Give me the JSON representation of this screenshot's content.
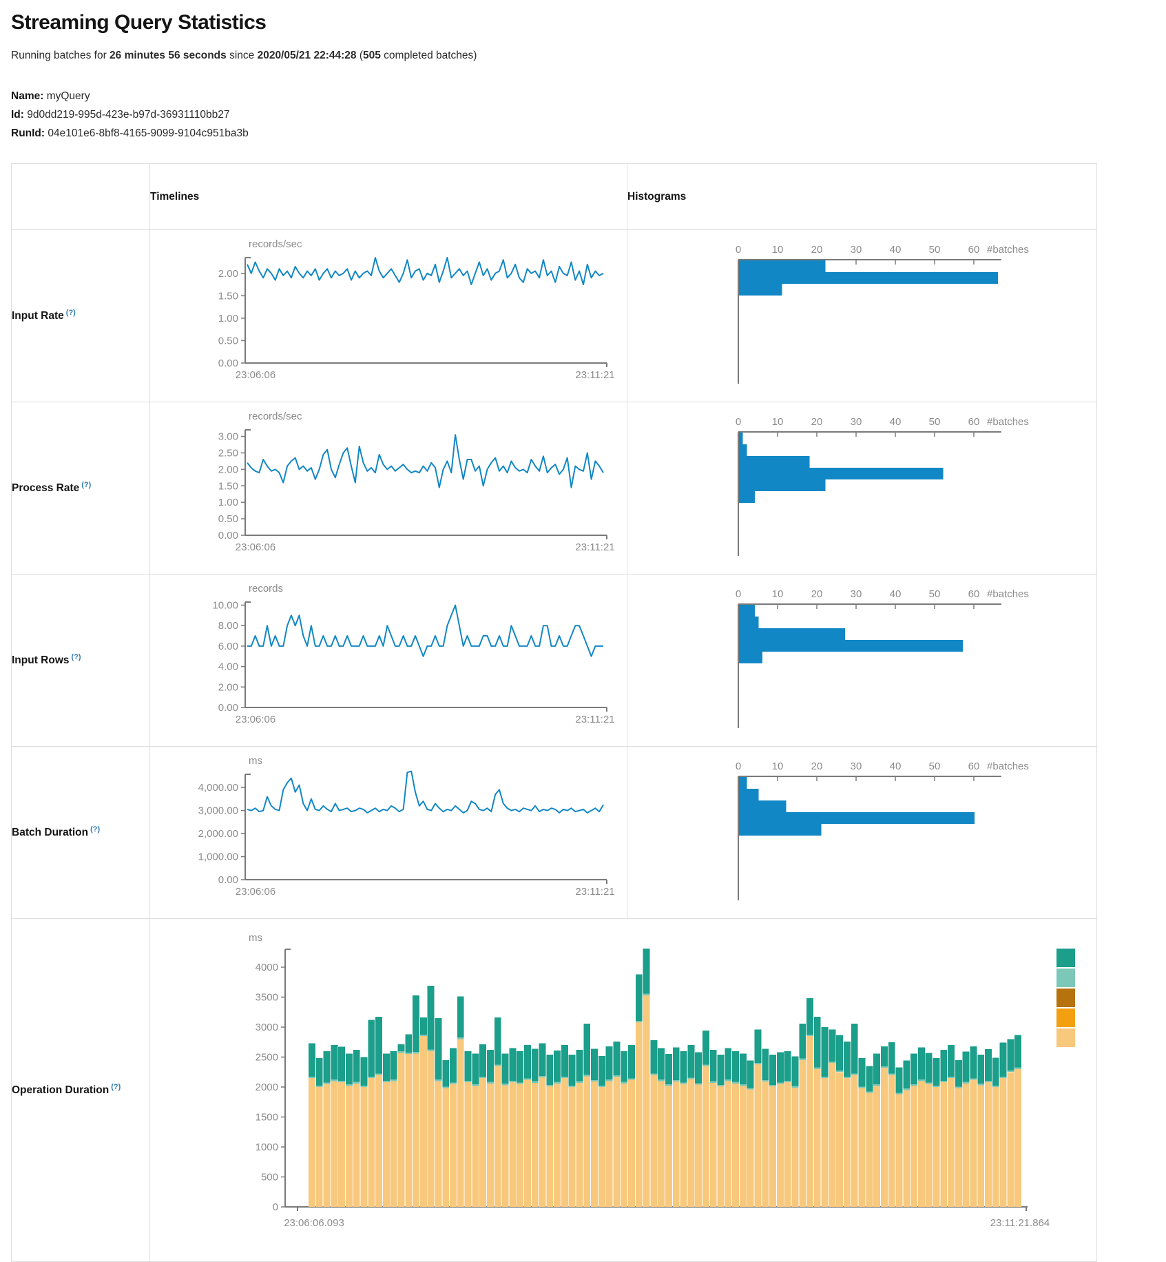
{
  "header": {
    "title": "Streaming Query Statistics",
    "prefix": "Running batches for",
    "duration": "26 minutes 56 seconds",
    "since": "since",
    "start_time": "2020/05/21 22:44:28",
    "open": "(",
    "count": "505",
    "suffix": " completed batches)"
  },
  "query_info": {
    "name_label": "Name:",
    "name": "myQuery",
    "id_label": "Id:",
    "id": "9d0dd219-995d-423e-b97d-36931110bb27",
    "runid_label": "RunId:",
    "runid": "04e101e6-8bf8-4165-9099-9104c951ba3b"
  },
  "table": {
    "timelines": "Timelines",
    "histograms": "Histograms",
    "rows": [
      {
        "label": "Input Rate",
        "help": "(?)"
      },
      {
        "label": "Process Rate",
        "help": "(?)"
      },
      {
        "label": "Input Rows",
        "help": "(?)"
      },
      {
        "label": "Batch Duration",
        "help": "(?)"
      },
      {
        "label": "Operation Duration",
        "help": "(?)"
      }
    ]
  },
  "colors": {
    "line": "#1287c5",
    "bar": "#1287c5",
    "axis": "#7a7a7a",
    "tick_text": "#8b8b8b",
    "teal": "#1b9e8a",
    "light_teal": "#7cc8b8",
    "brown": "#b5720d",
    "orange": "#f2a00f",
    "light_orange": "#f8c87d"
  },
  "chart_data": [
    {
      "type": "line",
      "row": "Input Rate",
      "unit": "records/sec",
      "x_start": "23:06:06",
      "x_end": "23:11:21",
      "ymax": 2.35,
      "yticks": [
        {
          "v": 0,
          "t": "0.00"
        },
        {
          "v": 0.5,
          "t": "0.50"
        },
        {
          "v": 1,
          "t": "1.00"
        },
        {
          "v": 1.5,
          "t": "1.50"
        },
        {
          "v": 2,
          "t": "2.00"
        }
      ],
      "values": [
        2.2,
        2.0,
        2.25,
        2.05,
        1.9,
        2.1,
        2.0,
        1.85,
        2.1,
        1.95,
        2.05,
        1.9,
        2.15,
        2.0,
        1.9,
        2.05,
        1.95,
        2.1,
        1.85,
        2.0,
        2.1,
        1.9,
        2.05,
        1.95,
        2.0,
        2.1,
        1.85,
        2.05,
        1.9,
        2.0,
        2.05,
        1.95,
        2.35,
        2.05,
        1.9,
        2.0,
        2.1,
        1.95,
        1.8,
        2.0,
        2.3,
        1.9,
        2.05,
        2.1,
        1.85,
        2.0,
        1.95,
        2.2,
        1.8,
        2.05,
        2.35,
        1.9,
        2.0,
        2.1,
        1.95,
        2.05,
        1.75,
        2.0,
        2.25,
        1.95,
        2.1,
        1.85,
        2.0,
        2.05,
        2.3,
        1.9,
        2.0,
        2.2,
        1.9,
        1.8,
        2.1,
        2.0,
        2.05,
        1.9,
        2.3,
        1.95,
        2.05,
        1.8,
        2.15,
        2.0,
        1.95,
        2.25,
        1.85,
        2.05,
        1.75,
        2.2,
        1.9,
        2.05,
        1.95,
        2.0
      ],
      "histogram": {
        "unit": "#batches",
        "xticks": [
          0,
          10,
          20,
          30,
          40,
          50,
          60
        ],
        "bars": [
          22,
          66,
          11
        ]
      }
    },
    {
      "type": "line",
      "row": "Process Rate",
      "unit": "records/sec",
      "x_start": "23:06:06",
      "x_end": "23:11:21",
      "ymax": 3.2,
      "yticks": [
        {
          "v": 0,
          "t": "0.00"
        },
        {
          "v": 0.5,
          "t": "0.50"
        },
        {
          "v": 1,
          "t": "1.00"
        },
        {
          "v": 1.5,
          "t": "1.50"
        },
        {
          "v": 2,
          "t": "2.00"
        },
        {
          "v": 2.5,
          "t": "2.50"
        },
        {
          "v": 3,
          "t": "3.00"
        }
      ],
      "values": [
        2.2,
        2.05,
        1.95,
        1.9,
        2.3,
        2.1,
        1.95,
        2.0,
        1.9,
        1.6,
        2.1,
        2.25,
        2.35,
        2.0,
        2.1,
        1.95,
        2.05,
        1.7,
        2.0,
        2.45,
        2.6,
        2.0,
        1.75,
        2.15,
        2.5,
        2.65,
        2.1,
        1.6,
        2.7,
        2.2,
        1.95,
        2.05,
        1.9,
        2.45,
        2.15,
        2.0,
        2.1,
        1.95,
        2.05,
        2.15,
        2.0,
        1.9,
        1.95,
        1.9,
        2.1,
        1.95,
        2.2,
        2.05,
        1.45,
        2.0,
        2.25,
        1.9,
        3.05,
        2.3,
        1.7,
        2.3,
        2.3,
        1.95,
        2.1,
        1.5,
        2.0,
        2.2,
        2.35,
        1.95,
        2.1,
        1.9,
        2.25,
        2.05,
        1.95,
        2.0,
        1.9,
        2.3,
        2.1,
        1.95,
        2.4,
        1.9,
        2.05,
        2.15,
        1.85,
        2.0,
        2.35,
        1.45,
        2.1,
        2.0,
        1.95,
        2.5,
        1.7,
        2.25,
        2.1,
        1.9
      ],
      "histogram": {
        "unit": "#batches",
        "xticks": [
          0,
          10,
          20,
          30,
          40,
          50,
          60
        ],
        "bars": [
          1,
          2,
          18,
          52,
          22,
          4
        ]
      }
    },
    {
      "type": "line",
      "row": "Input Rows",
      "unit": "records",
      "x_start": "23:06:06",
      "x_end": "23:11:21",
      "ymax": 10.3,
      "yticks": [
        {
          "v": 0,
          "t": "0.00"
        },
        {
          "v": 2,
          "t": "2.00"
        },
        {
          "v": 4,
          "t": "4.00"
        },
        {
          "v": 6,
          "t": "6.00"
        },
        {
          "v": 8,
          "t": "8.00"
        },
        {
          "v": 10,
          "t": "10.00"
        }
      ],
      "values": [
        6,
        6,
        7,
        6,
        6,
        8,
        6,
        7,
        6,
        6,
        8,
        9,
        8,
        9,
        7,
        6,
        8,
        6,
        6,
        7,
        6,
        6,
        7,
        6,
        6,
        7,
        6,
        6,
        6,
        7,
        6,
        6,
        6,
        7,
        6,
        8,
        7,
        6,
        6,
        7,
        6,
        6,
        7,
        6,
        5,
        6,
        6,
        7,
        6,
        6,
        8,
        9,
        10,
        8,
        6,
        7,
        6,
        6,
        6,
        7,
        7,
        6,
        6,
        7,
        6,
        6,
        8,
        7,
        6,
        6,
        6,
        7,
        6,
        6,
        8,
        8,
        6,
        6,
        7,
        6,
        6,
        7,
        8,
        8,
        7,
        6,
        5,
        6,
        6,
        6
      ],
      "histogram": {
        "unit": "#batches",
        "xticks": [
          0,
          10,
          20,
          30,
          40,
          50,
          60
        ],
        "bars": [
          4,
          5,
          27,
          57,
          6
        ]
      }
    },
    {
      "type": "line",
      "row": "Batch Duration",
      "unit": "ms",
      "x_start": "23:06:06",
      "x_end": "23:11:21",
      "ymax": 4570,
      "yticks": [
        {
          "v": 0,
          "t": "0.00"
        },
        {
          "v": 1000,
          "t": "1,000.00"
        },
        {
          "v": 2000,
          "t": "2,000.00"
        },
        {
          "v": 3000,
          "t": "3,000.00"
        },
        {
          "v": 4000,
          "t": "4,000.00"
        }
      ],
      "values": [
        3050,
        3000,
        3100,
        2950,
        3000,
        3600,
        3200,
        3050,
        3000,
        3900,
        4200,
        4400,
        3800,
        4100,
        3300,
        3000,
        3500,
        3050,
        3000,
        3200,
        3050,
        2950,
        3300,
        3000,
        3050,
        3100,
        2950,
        3000,
        3100,
        3050,
        2900,
        3000,
        3100,
        2950,
        3050,
        3000,
        3200,
        3100,
        2950,
        3050,
        4650,
        4700,
        3800,
        3200,
        3400,
        3050,
        3000,
        3300,
        3100,
        2950,
        3050,
        3000,
        3200,
        3050,
        2900,
        3000,
        3400,
        3300,
        3050,
        3000,
        3100,
        2950,
        3700,
        3900,
        3300,
        3100,
        3000,
        3050,
        2950,
        3100,
        3050,
        3000,
        3200,
        2950,
        3050,
        3000,
        3100,
        3050,
        2900,
        3050,
        3000,
        3100,
        2950,
        3000,
        3050,
        2900,
        3000,
        3100,
        2950,
        3250
      ],
      "histogram": {
        "unit": "#batches",
        "xticks": [
          0,
          10,
          20,
          30,
          40,
          50,
          60
        ],
        "bars": [
          2,
          5,
          12,
          60,
          21
        ]
      }
    },
    {
      "type": "stacked",
      "row": "Operation Duration",
      "unit": "ms",
      "x_start": "23:06:06.093",
      "x_end": "23:11:21.864",
      "yticks": [
        {
          "v": 0,
          "t": "0"
        },
        {
          "v": 500,
          "t": "500"
        },
        {
          "v": 1000,
          "t": "1000"
        },
        {
          "v": 1500,
          "t": "1500"
        },
        {
          "v": 2000,
          "t": "2000"
        },
        {
          "v": 2500,
          "t": "2500"
        },
        {
          "v": 3000,
          "t": "3000"
        },
        {
          "v": 3500,
          "t": "3500"
        },
        {
          "v": 4000,
          "t": "4000"
        }
      ],
      "sliver": 25,
      "legend_colors": [
        "teal",
        "light_teal",
        "brown",
        "orange",
        "light_orange"
      ],
      "bars": [
        [
          2150,
          2730
        ],
        [
          2000,
          2480
        ],
        [
          2050,
          2600
        ],
        [
          2100,
          2700
        ],
        [
          2080,
          2670
        ],
        [
          2020,
          2560
        ],
        [
          2060,
          2620
        ],
        [
          2000,
          2500
        ],
        [
          2150,
          3120
        ],
        [
          2200,
          3170
        ],
        [
          2080,
          2560
        ],
        [
          2100,
          2600
        ],
        [
          2570,
          2710
        ],
        [
          2550,
          2880
        ],
        [
          2560,
          3530
        ],
        [
          2850,
          3160
        ],
        [
          2600,
          3690
        ],
        [
          2100,
          3150
        ],
        [
          1980,
          2450
        ],
        [
          2050,
          2650
        ],
        [
          2800,
          3510
        ],
        [
          2080,
          2600
        ],
        [
          2020,
          2560
        ],
        [
          2150,
          2710
        ],
        [
          2060,
          2620
        ],
        [
          2350,
          3160
        ],
        [
          2030,
          2560
        ],
        [
          2080,
          2650
        ],
        [
          2050,
          2600
        ],
        [
          2120,
          2700
        ],
        [
          2070,
          2640
        ],
        [
          2160,
          2730
        ],
        [
          2010,
          2540
        ],
        [
          2060,
          2610
        ],
        [
          2150,
          2700
        ],
        [
          2000,
          2540
        ],
        [
          2070,
          2620
        ],
        [
          2180,
          3060
        ],
        [
          2090,
          2640
        ],
        [
          2000,
          2520
        ],
        [
          2100,
          2680
        ],
        [
          2170,
          2760
        ],
        [
          2060,
          2600
        ],
        [
          2120,
          2700
        ],
        [
          3080,
          3880
        ],
        [
          3530,
          4310
        ],
        [
          2200,
          2780
        ],
        [
          2100,
          2650
        ],
        [
          2020,
          2550
        ],
        [
          2090,
          2660
        ],
        [
          2050,
          2600
        ],
        [
          2130,
          2700
        ],
        [
          2040,
          2580
        ],
        [
          2350,
          2940
        ],
        [
          2070,
          2620
        ],
        [
          2010,
          2540
        ],
        [
          2100,
          2650
        ],
        [
          2060,
          2600
        ],
        [
          2020,
          2560
        ],
        [
          1960,
          2440
        ],
        [
          2380,
          2960
        ],
        [
          2090,
          2640
        ],
        [
          2010,
          2540
        ],
        [
          2050,
          2580
        ],
        [
          2080,
          2600
        ],
        [
          1990,
          2510
        ],
        [
          2450,
          3060
        ],
        [
          2850,
          3480
        ],
        [
          2300,
          3170
        ],
        [
          2150,
          3000
        ],
        [
          2400,
          2960
        ],
        [
          2250,
          2870
        ],
        [
          2150,
          2760
        ],
        [
          2200,
          3060
        ],
        [
          1980,
          2480
        ],
        [
          1900,
          2350
        ],
        [
          2020,
          2560
        ],
        [
          2320,
          2680
        ],
        [
          2200,
          2750
        ],
        [
          1880,
          2330
        ],
        [
          1950,
          2440
        ],
        [
          2020,
          2560
        ],
        [
          2100,
          2660
        ],
        [
          2050,
          2570
        ],
        [
          2000,
          2480
        ],
        [
          2080,
          2620
        ],
        [
          2150,
          2700
        ],
        [
          1980,
          2450
        ],
        [
          2060,
          2590
        ],
        [
          2120,
          2680
        ],
        [
          2030,
          2540
        ],
        [
          2080,
          2630
        ],
        [
          2000,
          2490
        ],
        [
          2150,
          2740
        ],
        [
          2250,
          2800
        ],
        [
          2300,
          2870
        ]
      ]
    }
  ]
}
